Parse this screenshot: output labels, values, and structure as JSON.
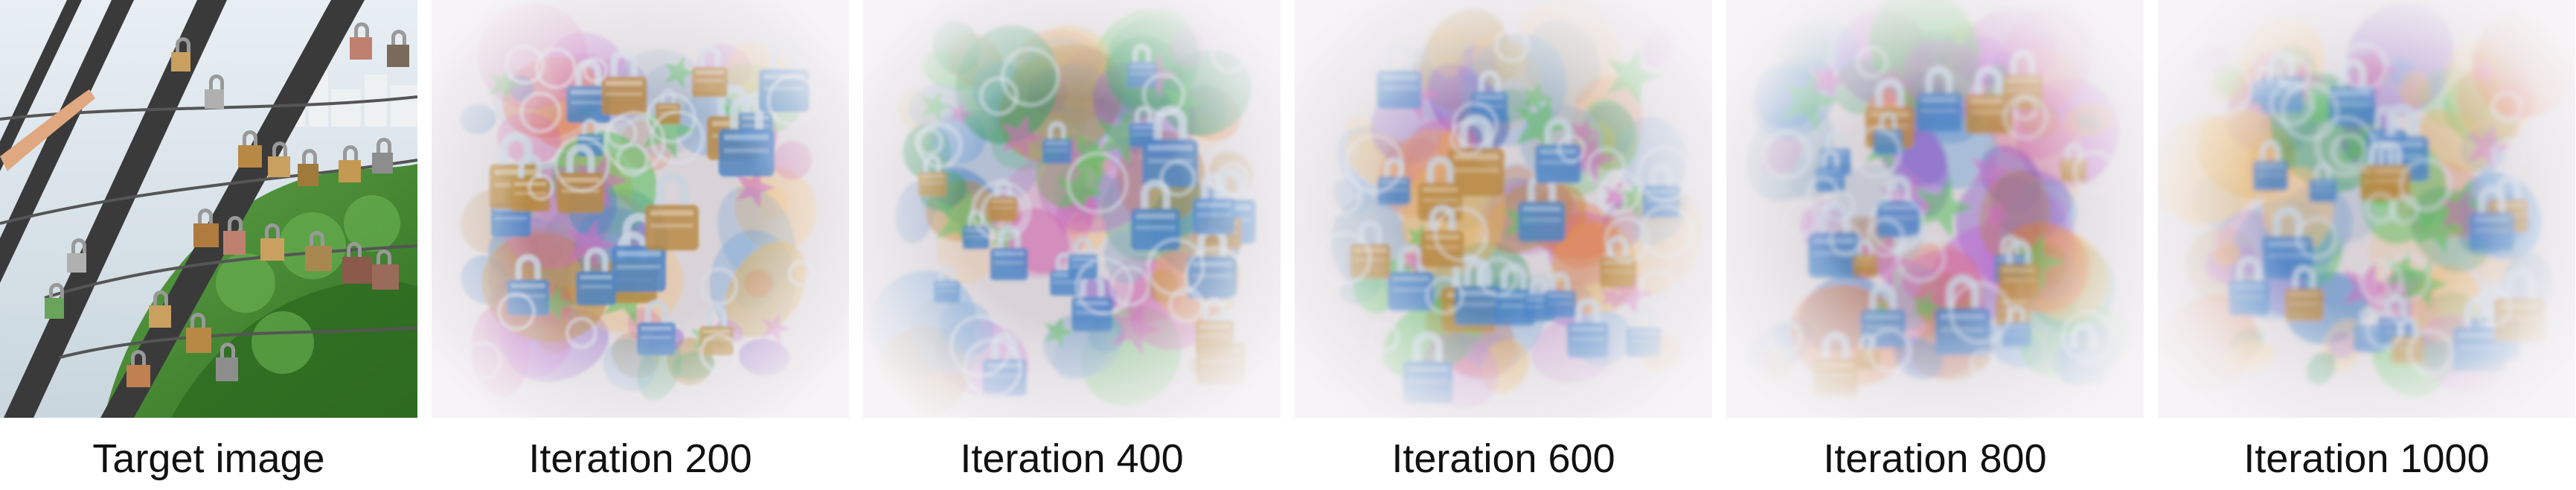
{
  "figure": {
    "panels": [
      {
        "caption": "Target image",
        "kind": "photo",
        "subject": "padlocks"
      },
      {
        "caption": "Iteration 200",
        "kind": "reconstruction",
        "step": 200,
        "blur_level": 0.2
      },
      {
        "caption": "Iteration 400",
        "kind": "reconstruction",
        "step": 400,
        "blur_level": 0.4
      },
      {
        "caption": "Iteration 600",
        "kind": "reconstruction",
        "step": 600,
        "blur_level": 0.6
      },
      {
        "caption": "Iteration 800",
        "kind": "reconstruction",
        "step": 800,
        "blur_level": 0.8
      },
      {
        "caption": "Iteration 1000",
        "kind": "reconstruction",
        "step": 1000,
        "blur_level": 1.0
      }
    ],
    "colors": {
      "sky": "#dfe8ee",
      "foliage": "#3f8a2f",
      "metal_bar": "#3a3a3a",
      "lock_blue": "#4f86c6",
      "lock_bronze": "#b88945",
      "vignette": "#f3f1f3"
    }
  }
}
